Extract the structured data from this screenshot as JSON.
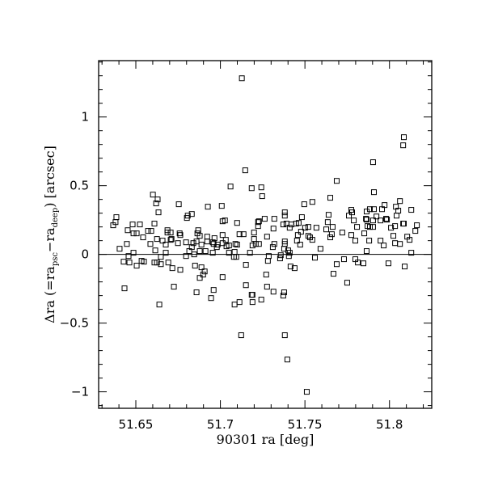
{
  "chart_data": {
    "type": "scatter",
    "title": "",
    "xlabel": "90301 ra [deg]",
    "ylabel": {
      "prefix": "Δra (=ra",
      "sub1": "psc",
      "mid": "−ra",
      "sub2": "deep",
      "suffix": ") [arcsec]"
    },
    "xlim": [
      51.628,
      51.825
    ],
    "ylim": [
      -1.12,
      1.41
    ],
    "x_ticks": [
      51.65,
      51.7,
      51.75,
      51.8
    ],
    "x_tick_labels": [
      "51.65",
      "51.7",
      "51.75",
      "51.8"
    ],
    "y_ticks": [
      -1,
      -0.5,
      0,
      0.5,
      1
    ],
    "y_tick_labels": [
      "−1",
      "−0.5",
      "0",
      "0.5",
      "1"
    ],
    "x_minor_step": 0.01,
    "y_minor_step": 0.1,
    "reference_line_y": 0,
    "grid": false,
    "marker": "open-square",
    "points": [
      [
        51.6366,
        0.212
      ],
      [
        51.638,
        0.235
      ],
      [
        51.6385,
        0.271
      ],
      [
        51.6404,
        0.041
      ],
      [
        51.6428,
        -0.053
      ],
      [
        51.6433,
        -0.247
      ],
      [
        51.6447,
        0.076
      ],
      [
        51.6452,
        0.176
      ],
      [
        51.6457,
        -0.012
      ],
      [
        51.6462,
        -0.059
      ],
      [
        51.6481,
        0.218
      ],
      [
        51.6486,
        0.012
      ],
      [
        51.6486,
        0.153
      ],
      [
        51.6505,
        0.153
      ],
      [
        51.6505,
        -0.082
      ],
      [
        51.6524,
        0.218
      ],
      [
        51.6534,
        -0.047
      ],
      [
        51.6543,
        0.124
      ],
      [
        51.6548,
        -0.053
      ],
      [
        51.6572,
        0.171
      ],
      [
        51.6586,
        0.076
      ],
      [
        51.6591,
        0.171
      ],
      [
        51.6601,
        0.435
      ],
      [
        51.6615,
        0.029
      ],
      [
        51.661,
        0.224
      ],
      [
        51.661,
        -0.059
      ],
      [
        51.662,
        0.371
      ],
      [
        51.6625,
        0.112
      ],
      [
        51.6629,
        0.4
      ],
      [
        51.6634,
        0.306
      ],
      [
        51.6625,
        -0.059
      ],
      [
        51.6639,
        -0.365
      ],
      [
        51.6648,
        -0.071
      ],
      [
        51.6648,
        -0.018
      ],
      [
        51.6658,
        0.1
      ],
      [
        51.6677,
        0.012
      ],
      [
        51.6677,
        0.071
      ],
      [
        51.6687,
        0.176
      ],
      [
        51.6687,
        0.159
      ],
      [
        51.6692,
        -0.059
      ],
      [
        51.6706,
        0.159
      ],
      [
        51.6706,
        0.106
      ],
      [
        51.6711,
        0.112
      ],
      [
        51.6716,
        -0.1
      ],
      [
        51.6725,
        -0.235
      ],
      [
        51.6749,
        0.082
      ],
      [
        51.6754,
        0.365
      ],
      [
        51.6759,
        0.153
      ],
      [
        51.6763,
        0.141
      ],
      [
        51.6763,
        -0.112
      ],
      [
        51.6797,
        0.088
      ],
      [
        51.6797,
        -0.012
      ],
      [
        51.6802,
        0.265
      ],
      [
        51.6807,
        0.282
      ],
      [
        51.6816,
        0.024
      ],
      [
        51.6831,
        0.294
      ],
      [
        51.6831,
        0.053
      ],
      [
        51.684,
        0.082
      ],
      [
        51.6845,
        0
      ],
      [
        51.685,
        -0.082
      ],
      [
        51.6859,
        0.094
      ],
      [
        51.6859,
        -0.276
      ],
      [
        51.6864,
        0.153
      ],
      [
        51.6869,
        0.176
      ],
      [
        51.6878,
        0.024
      ],
      [
        51.6878,
        0.135
      ],
      [
        51.6878,
        -0.171
      ],
      [
        51.6888,
        -0.094
      ],
      [
        51.6888,
        0.071
      ],
      [
        51.6898,
        -0.147
      ],
      [
        51.6907,
        -0.124
      ],
      [
        51.6912,
        0.024
      ],
      [
        51.6926,
        0.347
      ],
      [
        51.6922,
        0.129
      ],
      [
        51.6922,
        0.094
      ],
      [
        51.6945,
        -0.318
      ],
      [
        51.6955,
        0.012
      ],
      [
        51.696,
        -0.259
      ],
      [
        51.6965,
        0.118
      ],
      [
        51.6955,
        0.088
      ],
      [
        51.696,
        0.076
      ],
      [
        51.6979,
        0.053
      ],
      [
        51.6984,
        0.071
      ],
      [
        51.7008,
        0.353
      ],
      [
        51.7013,
        -0.165
      ],
      [
        51.7013,
        0.241
      ],
      [
        51.7013,
        0.141
      ],
      [
        51.7013,
        0.082
      ],
      [
        51.7027,
        0.247
      ],
      [
        51.7032,
        0.106
      ],
      [
        51.7036,
        0.059
      ],
      [
        51.7051,
        0.065
      ],
      [
        51.7051,
        0.012
      ],
      [
        51.706,
        0.494
      ],
      [
        51.708,
        -0.018
      ],
      [
        51.7084,
        0.018
      ],
      [
        51.7084,
        -0.365
      ],
      [
        51.7089,
        0.076
      ],
      [
        51.7094,
        -0.018
      ],
      [
        51.7099,
        0.229
      ],
      [
        51.7099,
        0.071
      ],
      [
        51.7113,
        0.147
      ],
      [
        51.7113,
        -0.347
      ],
      [
        51.7137,
        0.147
      ],
      [
        51.7151,
        -0.224
      ],
      [
        51.7151,
        -0.076
      ],
      [
        51.7175,
        0.012
      ],
      [
        51.7185,
        0.482
      ],
      [
        51.7185,
        -0.294
      ],
      [
        51.719,
        -0.347
      ],
      [
        51.7199,
        0.112
      ],
      [
        51.7199,
        0.159
      ],
      [
        51.7209,
        0.076
      ],
      [
        51.7223,
        0.235
      ],
      [
        51.7223,
        0.206
      ],
      [
        51.7242,
        0.488
      ],
      [
        51.7247,
        0.424
      ],
      [
        51.7688,
        0.535
      ],
      [
        51.7908,
        0.453
      ],
      [
        51.8062,
        0.388
      ],
      [
        51.7496,
        0.365
      ],
      [
        51.7544,
        0.382
      ],
      [
        51.765,
        0.412
      ],
      [
        51.8129,
        0.324
      ],
      [
        51.7381,
        0.306
      ],
      [
        51.7381,
        0.282
      ],
      [
        51.764,
        0.288
      ],
      [
        51.7774,
        0.324
      ],
      [
        51.7779,
        0.306
      ],
      [
        51.776,
        0.282
      ],
      [
        51.7865,
        0.312
      ],
      [
        51.7884,
        0.329
      ],
      [
        51.7908,
        0.329
      ],
      [
        51.7956,
        0.329
      ],
      [
        51.7971,
        0.359
      ],
      [
        51.8038,
        0.347
      ],
      [
        51.8052,
        0.318
      ],
      [
        51.8042,
        0.282
      ],
      [
        51.7262,
        0.259
      ],
      [
        51.7319,
        0.259
      ],
      [
        51.7482,
        0.271
      ],
      [
        51.7228,
        0.241
      ],
      [
        51.7635,
        0.235
      ],
      [
        51.7789,
        0.247
      ],
      [
        51.7861,
        0.259
      ],
      [
        51.7865,
        0.253
      ],
      [
        51.7923,
        0.276
      ],
      [
        51.7903,
        0.247
      ],
      [
        51.7947,
        0.247
      ],
      [
        51.798,
        0.259
      ],
      [
        51.7985,
        0.253
      ],
      [
        51.7372,
        0.218
      ],
      [
        51.7391,
        0.224
      ],
      [
        51.742,
        0.218
      ],
      [
        51.7448,
        0.224
      ],
      [
        51.7463,
        0.229
      ],
      [
        51.8081,
        0.224
      ],
      [
        51.8085,
        0.224
      ],
      [
        51.8162,
        0.212
      ],
      [
        51.741,
        0.194
      ],
      [
        51.7501,
        0.194
      ],
      [
        51.752,
        0.2
      ],
      [
        51.7568,
        0.194
      ],
      [
        51.7626,
        0.182
      ],
      [
        51.7664,
        0.2
      ],
      [
        51.7808,
        0.2
      ],
      [
        51.787,
        0.206
      ],
      [
        51.7884,
        0.2
      ],
      [
        51.7903,
        0.2
      ],
      [
        51.8009,
        0.194
      ],
      [
        51.8033,
        0.206
      ],
      [
        51.7314,
        0.188
      ],
      [
        51.7477,
        0.165
      ],
      [
        51.7458,
        0.141
      ],
      [
        51.752,
        0.135
      ],
      [
        51.753,
        0.124
      ],
      [
        51.7544,
        0.106
      ],
      [
        51.7659,
        0.147
      ],
      [
        51.765,
        0.124
      ],
      [
        51.7721,
        0.159
      ],
      [
        51.7774,
        0.141
      ],
      [
        51.7851,
        0.153
      ],
      [
        51.8023,
        0.135
      ],
      [
        51.8105,
        0.129
      ],
      [
        51.8153,
        0.171
      ],
      [
        51.7276,
        0.129
      ],
      [
        51.719,
        0.065
      ],
      [
        51.7228,
        0.076
      ],
      [
        51.7319,
        0.076
      ],
      [
        51.731,
        0.053
      ],
      [
        51.7381,
        0.094
      ],
      [
        51.7381,
        0.076
      ],
      [
        51.7453,
        0.1
      ],
      [
        51.7472,
        0.071
      ],
      [
        51.7592,
        0.041
      ],
      [
        51.7798,
        0.1
      ],
      [
        51.788,
        0.1
      ],
      [
        51.7947,
        0.1
      ],
      [
        51.7966,
        0.065
      ],
      [
        51.8033,
        0.082
      ],
      [
        51.8062,
        0.076
      ],
      [
        51.8119,
        0.106
      ],
      [
        51.7377,
        0.041
      ],
      [
        51.7401,
        0.029
      ],
      [
        51.741,
        0.012
      ],
      [
        51.7405,
        -0.012
      ],
      [
        51.7865,
        0.024
      ],
      [
        51.8129,
        0.012
      ],
      [
        51.7286,
        -0.012
      ],
      [
        51.7357,
        -0.006
      ],
      [
        51.7353,
        -0.029
      ],
      [
        51.7559,
        -0.024
      ],
      [
        51.7731,
        -0.035
      ],
      [
        51.7798,
        -0.035
      ],
      [
        51.7813,
        -0.059
      ],
      [
        51.7846,
        -0.065
      ],
      [
        51.7281,
        -0.047
      ],
      [
        51.7688,
        -0.071
      ],
      [
        51.7994,
        -0.065
      ],
      [
        51.7415,
        -0.088
      ],
      [
        51.7439,
        -0.1
      ],
      [
        51.809,
        -0.088
      ],
      [
        51.7271,
        -0.147
      ],
      [
        51.7669,
        -0.141
      ],
      [
        51.775,
        -0.206
      ],
      [
        51.7276,
        -0.235
      ],
      [
        51.7314,
        -0.271
      ],
      [
        51.7377,
        -0.276
      ],
      [
        51.7372,
        -0.3
      ],
      [
        51.719,
        -0.294
      ],
      [
        51.7242,
        -0.329
      ],
      [
        51.7127,
        1.282
      ],
      [
        51.7147,
        0.612
      ],
      [
        51.7903,
        0.671
      ],
      [
        51.8085,
        0.853
      ],
      [
        51.8081,
        0.794
      ],
      [
        51.7123,
        -0.588
      ],
      [
        51.7381,
        -0.588
      ],
      [
        51.7396,
        -0.765
      ],
      [
        51.7511,
        -1.0
      ]
    ]
  }
}
